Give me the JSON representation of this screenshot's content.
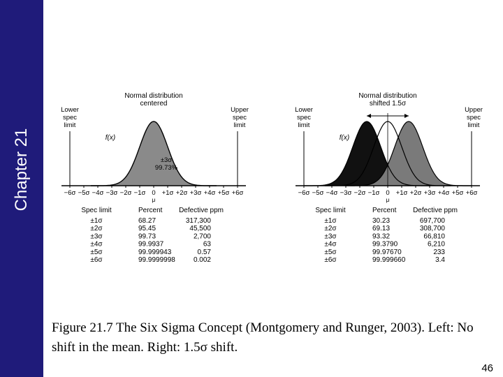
{
  "sidebar": {
    "chapter_label": "Chapter 21",
    "color": "#1f1b7a"
  },
  "chart_data": [
    {
      "type": "line",
      "title": "Normal distribution centered",
      "mean_shift_sigma": 0,
      "center_label": "0\nμ",
      "left_spec_label": "Lower spec limit",
      "right_spec_label": "Upper spec limit",
      "fx_label": "f(x)",
      "inner_annotation": "±3σ\n99.73%",
      "x_ticks": [
        "−6σ",
        "−5σ",
        "−4σ",
        "−3σ",
        "−2σ",
        "−1σ",
        "0",
        "+1σ",
        "+2σ",
        "+3σ",
        "+4σ",
        "+5σ",
        "+6σ"
      ],
      "table": {
        "headers": [
          "Spec limit",
          "Percent",
          "Defective ppm"
        ],
        "rows": [
          [
            "±1σ",
            "68.27",
            "317,300"
          ],
          [
            "±2σ",
            "95.45",
            "45,500"
          ],
          [
            "±3σ",
            "99.73",
            "2,700"
          ],
          [
            "±4σ",
            "99.9937",
            "63"
          ],
          [
            "±5σ",
            "99.999943",
            "0.57"
          ],
          [
            "±6σ",
            "99.9999998",
            "0.002"
          ]
        ]
      }
    },
    {
      "type": "line",
      "title": "Normal distribution shifted 1.5σ",
      "mean_shift_sigma": 1.5,
      "center_label": "0\nμ",
      "left_spec_label": "Lower spec limit",
      "right_spec_label": "Upper spec limit",
      "fx_label": "f(x)",
      "x_ticks": [
        "−6σ",
        "−5σ",
        "−4σ",
        "−3σ",
        "−2σ",
        "−1σ",
        "0",
        "+1σ",
        "+2σ",
        "+3σ",
        "+4σ",
        "+5σ",
        "+6σ"
      ],
      "table": {
        "headers": [
          "Spec limit",
          "Percent",
          "Defective ppm"
        ],
        "rows": [
          [
            "±1σ",
            "30.23",
            "697,700"
          ],
          [
            "±2σ",
            "69.13",
            "308,700"
          ],
          [
            "±3σ",
            "93.32",
            "66,810"
          ],
          [
            "±4σ",
            "99.3790",
            "6,210"
          ],
          [
            "±5σ",
            "99.97670",
            "233"
          ],
          [
            "±6σ",
            "99.999660",
            "3.4"
          ]
        ]
      }
    }
  ],
  "caption": "Figure 21.7 The Six Sigma Concept (Montgomery and Runger, 2003). Left: No shift in the mean. Right: 1.5σ shift.",
  "page_number": "46"
}
